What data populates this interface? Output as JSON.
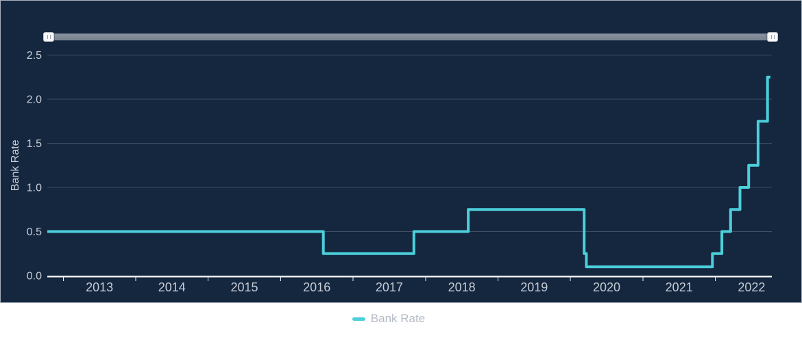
{
  "panel": {
    "background": "#15273f",
    "border_color": "#a9b2bd"
  },
  "navigator": {
    "track_color": "#79828f",
    "handle_color": "#f7f8fa",
    "left_handle_name": "range-start-handle",
    "right_handle_name": "range-end-handle"
  },
  "chart_data": {
    "type": "line",
    "step": true,
    "title": "",
    "xlabel": "",
    "ylabel": "Bank Rate",
    "x_domain": [
      2012.78,
      2022.78
    ],
    "ylim": [
      0,
      2.5
    ],
    "y_ticks": [
      {
        "value": 0.0,
        "label": "0.0"
      },
      {
        "value": 0.5,
        "label": "0.5"
      },
      {
        "value": 1.0,
        "label": "1.0"
      },
      {
        "value": 1.5,
        "label": "1.5"
      },
      {
        "value": 2.0,
        "label": "2.0"
      },
      {
        "value": 2.5,
        "label": "2.5"
      }
    ],
    "x_ticks": [
      {
        "year": 2013,
        "label": "2013"
      },
      {
        "year": 2014,
        "label": "2014"
      },
      {
        "year": 2015,
        "label": "2015"
      },
      {
        "year": 2016,
        "label": "2016"
      },
      {
        "year": 2017,
        "label": "2017"
      },
      {
        "year": 2018,
        "label": "2018"
      },
      {
        "year": 2019,
        "label": "2019"
      },
      {
        "year": 2020,
        "label": "2020"
      },
      {
        "year": 2021,
        "label": "2021"
      },
      {
        "year": 2022,
        "label": "2022"
      }
    ],
    "grid": true,
    "legend_position": "bottom-center",
    "colors": {
      "line": "#4bcfda",
      "grid": "#3e4e64",
      "axis": "#eef1f4",
      "tick_label": "#c5ccd6",
      "axis_title": "#ccd3dc"
    },
    "series": [
      {
        "name": "Bank Rate",
        "color": "#4bcfda",
        "points": [
          [
            2012.78,
            0.5
          ],
          [
            2016.59,
            0.5
          ],
          [
            2016.59,
            0.25
          ],
          [
            2017.84,
            0.25
          ],
          [
            2017.84,
            0.5
          ],
          [
            2018.59,
            0.5
          ],
          [
            2018.59,
            0.75
          ],
          [
            2020.19,
            0.75
          ],
          [
            2020.19,
            0.25
          ],
          [
            2020.22,
            0.25
          ],
          [
            2020.22,
            0.1
          ],
          [
            2021.96,
            0.1
          ],
          [
            2021.96,
            0.25
          ],
          [
            2022.09,
            0.25
          ],
          [
            2022.09,
            0.5
          ],
          [
            2022.21,
            0.5
          ],
          [
            2022.21,
            0.75
          ],
          [
            2022.34,
            0.75
          ],
          [
            2022.34,
            1.0
          ],
          [
            2022.46,
            1.0
          ],
          [
            2022.46,
            1.25
          ],
          [
            2022.59,
            1.25
          ],
          [
            2022.59,
            1.75
          ],
          [
            2022.72,
            1.75
          ],
          [
            2022.72,
            2.25
          ],
          [
            2022.76,
            2.25
          ]
        ],
        "rate_changes": [
          {
            "date": "Aug 2016",
            "rate": 0.25
          },
          {
            "date": "Nov 2017",
            "rate": 0.5
          },
          {
            "date": "Aug 2018",
            "rate": 0.75
          },
          {
            "date": "Mar 2020",
            "rate": 0.25
          },
          {
            "date": "Mar 2020",
            "rate": 0.1
          },
          {
            "date": "Dec 2021",
            "rate": 0.25
          },
          {
            "date": "Feb 2022",
            "rate": 0.5
          },
          {
            "date": "Mar 2022",
            "rate": 0.75
          },
          {
            "date": "May 2022",
            "rate": 1.0
          },
          {
            "date": "Jun 2022",
            "rate": 1.25
          },
          {
            "date": "Aug 2022",
            "rate": 1.75
          },
          {
            "date": "Sep 2022",
            "rate": 2.25
          }
        ]
      }
    ]
  },
  "legend": {
    "items": [
      {
        "label": "Bank Rate",
        "color": "#4bcfda"
      }
    ]
  }
}
